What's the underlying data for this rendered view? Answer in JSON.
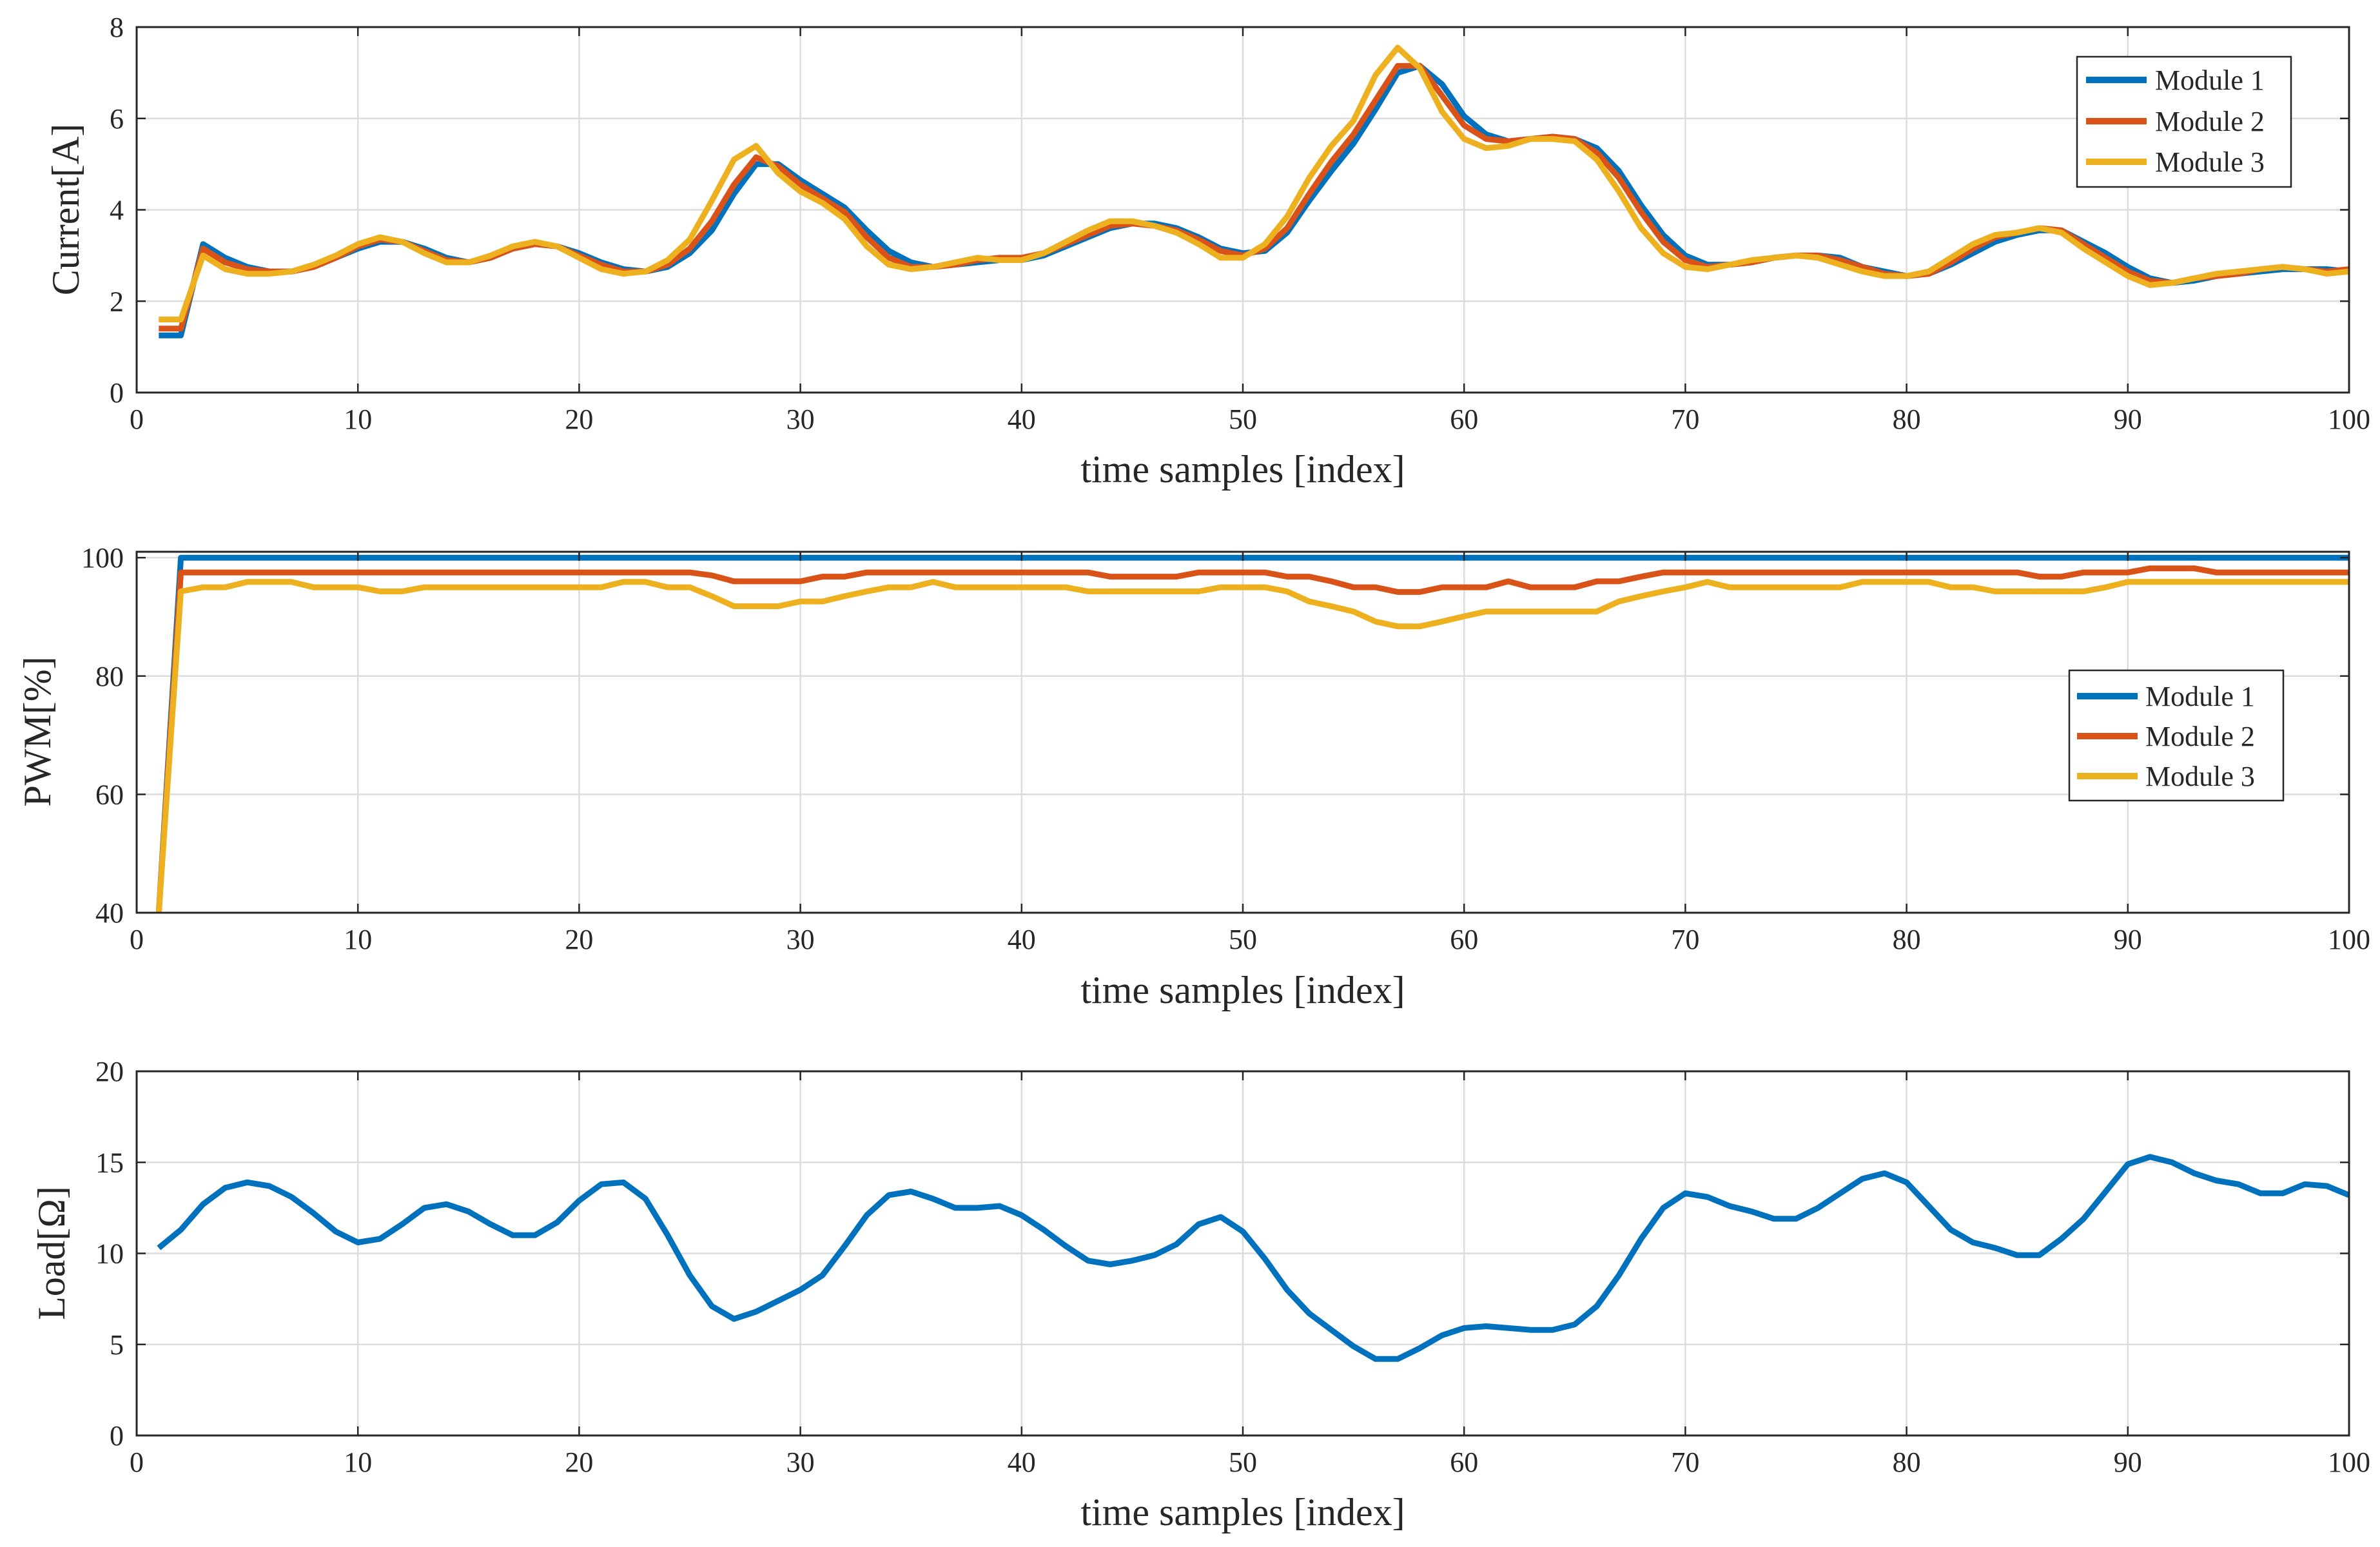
{
  "chart_data": [
    {
      "type": "line",
      "title": "",
      "xlabel": "time samples [index]",
      "ylabel": "Current[A]",
      "xlim": [
        0,
        100
      ],
      "ylim": [
        0,
        8
      ],
      "xticks": [
        0,
        10,
        20,
        30,
        40,
        50,
        60,
        70,
        80,
        90,
        100
      ],
      "yticks": [
        0,
        2,
        4,
        6,
        8
      ],
      "grid": true,
      "legend": "top-right",
      "x_start": 1,
      "series": [
        {
          "name": "Module 1",
          "color": "#0072BD",
          "values": [
            1.25,
            1.25,
            3.25,
            2.95,
            2.75,
            2.65,
            2.65,
            2.75,
            2.95,
            3.15,
            3.3,
            3.3,
            3.15,
            2.95,
            2.85,
            2.95,
            3.15,
            3.25,
            3.2,
            3.05,
            2.85,
            2.7,
            2.65,
            2.75,
            3.05,
            3.55,
            4.35,
            5.0,
            5.0,
            4.65,
            4.35,
            4.05,
            3.55,
            3.1,
            2.85,
            2.75,
            2.8,
            2.85,
            2.9,
            2.9,
            3.0,
            3.2,
            3.4,
            3.6,
            3.7,
            3.7,
            3.6,
            3.4,
            3.15,
            3.05,
            3.1,
            3.5,
            4.2,
            4.85,
            5.45,
            6.2,
            7.0,
            7.15,
            6.75,
            6.05,
            5.65,
            5.5,
            5.55,
            5.6,
            5.55,
            5.35,
            4.85,
            4.1,
            3.45,
            3.0,
            2.8,
            2.8,
            2.85,
            2.95,
            3.0,
            3.0,
            2.95,
            2.75,
            2.65,
            2.55,
            2.6,
            2.8,
            3.05,
            3.3,
            3.45,
            3.55,
            3.55,
            3.3,
            3.05,
            2.75,
            2.5,
            2.4,
            2.45,
            2.55,
            2.6,
            2.65,
            2.7,
            2.7,
            2.7,
            2.65
          ]
        },
        {
          "name": "Module 2",
          "color": "#D95319",
          "values": [
            1.4,
            1.4,
            3.15,
            2.85,
            2.7,
            2.65,
            2.65,
            2.75,
            2.95,
            3.2,
            3.35,
            3.3,
            3.1,
            2.9,
            2.85,
            2.95,
            3.15,
            3.25,
            3.2,
            3.0,
            2.8,
            2.65,
            2.65,
            2.8,
            3.15,
            3.75,
            4.55,
            5.15,
            4.95,
            4.55,
            4.25,
            3.95,
            3.4,
            2.95,
            2.75,
            2.75,
            2.8,
            2.9,
            2.95,
            2.95,
            3.05,
            3.25,
            3.45,
            3.65,
            3.7,
            3.65,
            3.55,
            3.35,
            3.1,
            3.0,
            3.15,
            3.6,
            4.35,
            5.05,
            5.65,
            6.4,
            7.15,
            7.15,
            6.5,
            5.85,
            5.55,
            5.5,
            5.55,
            5.6,
            5.55,
            5.25,
            4.7,
            3.95,
            3.3,
            2.9,
            2.75,
            2.8,
            2.85,
            2.95,
            3.0,
            3.0,
            2.9,
            2.75,
            2.6,
            2.55,
            2.6,
            2.85,
            3.15,
            3.4,
            3.5,
            3.6,
            3.55,
            3.25,
            2.95,
            2.65,
            2.45,
            2.4,
            2.5,
            2.55,
            2.6,
            2.7,
            2.75,
            2.7,
            2.65,
            2.7
          ]
        },
        {
          "name": "Module 3",
          "color": "#EDB120",
          "values": [
            1.6,
            1.6,
            3.0,
            2.7,
            2.6,
            2.6,
            2.65,
            2.8,
            3.0,
            3.25,
            3.4,
            3.3,
            3.05,
            2.85,
            2.85,
            3.0,
            3.2,
            3.3,
            3.2,
            2.95,
            2.7,
            2.6,
            2.65,
            2.9,
            3.35,
            4.2,
            5.1,
            5.4,
            4.8,
            4.4,
            4.15,
            3.8,
            3.2,
            2.8,
            2.7,
            2.75,
            2.85,
            2.95,
            2.9,
            2.9,
            3.05,
            3.3,
            3.55,
            3.75,
            3.75,
            3.65,
            3.5,
            3.25,
            2.95,
            2.95,
            3.25,
            3.85,
            4.7,
            5.4,
            5.95,
            6.95,
            7.55,
            7.1,
            6.15,
            5.55,
            5.35,
            5.4,
            5.55,
            5.55,
            5.5,
            5.1,
            4.4,
            3.6,
            3.05,
            2.75,
            2.7,
            2.8,
            2.9,
            2.95,
            3.0,
            2.95,
            2.8,
            2.65,
            2.55,
            2.55,
            2.65,
            2.95,
            3.25,
            3.45,
            3.5,
            3.6,
            3.5,
            3.15,
            2.85,
            2.55,
            2.35,
            2.4,
            2.5,
            2.6,
            2.65,
            2.7,
            2.75,
            2.7,
            2.6,
            2.65
          ]
        }
      ]
    },
    {
      "type": "line",
      "title": "",
      "xlabel": "time samples [index]",
      "ylabel": "PWM[%]",
      "xlim": [
        0,
        100
      ],
      "ylim": [
        40,
        101
      ],
      "xticks": [
        0,
        10,
        20,
        30,
        40,
        50,
        60,
        70,
        80,
        90,
        100
      ],
      "yticks": [
        40,
        60,
        80,
        100
      ],
      "grid": true,
      "legend": "center-right",
      "x_start": 1,
      "series": [
        {
          "name": "Module 1",
          "color": "#0072BD",
          "values": [
            40,
            100,
            100,
            100,
            100,
            100,
            100,
            100,
            100,
            100,
            100,
            100,
            100,
            100,
            100,
            100,
            100,
            100,
            100,
            100,
            100,
            100,
            100,
            100,
            100,
            100,
            100,
            100,
            100,
            100,
            100,
            100,
            100,
            100,
            100,
            100,
            100,
            100,
            100,
            100,
            100,
            100,
            100,
            100,
            100,
            100,
            100,
            100,
            100,
            100,
            100,
            100,
            100,
            100,
            100,
            100,
            100,
            100,
            100,
            100,
            100,
            100,
            100,
            100,
            100,
            100,
            100,
            100,
            100,
            100,
            100,
            100,
            100,
            100,
            100,
            100,
            100,
            100,
            100,
            100,
            100,
            100,
            100,
            100,
            100,
            100,
            100,
            100,
            100,
            100,
            100,
            100,
            100,
            100,
            100,
            100,
            100,
            100,
            100,
            100
          ]
        },
        {
          "name": "Module 2",
          "color": "#D95319",
          "values": [
            40,
            97.5,
            97.5,
            97.5,
            97.5,
            97.5,
            97.5,
            97.5,
            97.5,
            97.5,
            97.5,
            97.5,
            97.5,
            97.5,
            97.5,
            97.5,
            97.5,
            97.5,
            97.5,
            97.5,
            97.5,
            97.5,
            97.5,
            97.5,
            97.5,
            97,
            96,
            96,
            96,
            96,
            96.8,
            96.8,
            97.5,
            97.5,
            97.5,
            97.5,
            97.5,
            97.5,
            97.5,
            97.5,
            97.5,
            97.5,
            97.5,
            96.8,
            96.8,
            96.8,
            96.8,
            97.5,
            97.5,
            97.5,
            97.5,
            96.8,
            96.8,
            96,
            95,
            95,
            94.2,
            94.2,
            95,
            95,
            95,
            96,
            95,
            95,
            95,
            96,
            96,
            96.8,
            97.5,
            97.5,
            97.5,
            97.5,
            97.5,
            97.5,
            97.5,
            97.5,
            97.5,
            97.5,
            97.5,
            97.5,
            97.5,
            97.5,
            97.5,
            97.5,
            97.5,
            96.8,
            96.8,
            97.5,
            97.5,
            97.5,
            98.2,
            98.2,
            98.2,
            97.5,
            97.5,
            97.5,
            97.5,
            97.5,
            97.5,
            97.5
          ]
        },
        {
          "name": "Module 3",
          "color": "#EDB120",
          "values": [
            40,
            94.3,
            95,
            95,
            95.9,
            95.9,
            95.9,
            95,
            95,
            95,
            94.3,
            94.3,
            95,
            95,
            95,
            95,
            95,
            95,
            95,
            95,
            95,
            95.9,
            95.9,
            95,
            95,
            93.5,
            91.8,
            91.8,
            91.8,
            92.6,
            92.6,
            93.5,
            94.3,
            95,
            95,
            95.9,
            95,
            95,
            95,
            95,
            95,
            95,
            94.3,
            94.3,
            94.3,
            94.3,
            94.3,
            94.3,
            95,
            95,
            95,
            94.3,
            92.6,
            91.8,
            90.9,
            89.2,
            88.4,
            88.4,
            89.2,
            90.1,
            90.9,
            90.9,
            90.9,
            90.9,
            90.9,
            90.9,
            92.6,
            93.5,
            94.3,
            95,
            95.9,
            95,
            95,
            95,
            95,
            95,
            95,
            95.9,
            95.9,
            95.9,
            95.9,
            95,
            95,
            94.3,
            94.3,
            94.3,
            94.3,
            94.3,
            95,
            95.9,
            95.9,
            95.9,
            95.9,
            95.9,
            95.9,
            95.9,
            95.9,
            95.9,
            95.9,
            95.9
          ]
        }
      ]
    },
    {
      "type": "line",
      "title": "",
      "xlabel": "time samples [index]",
      "ylabel": "Load[Ω]",
      "xlim": [
        0,
        100
      ],
      "ylim": [
        0,
        20
      ],
      "xticks": [
        0,
        10,
        20,
        30,
        40,
        50,
        60,
        70,
        80,
        90,
        100
      ],
      "yticks": [
        0,
        5,
        10,
        15,
        20
      ],
      "grid": true,
      "legend": "none",
      "x_start": 1,
      "series": [
        {
          "name": "Load",
          "color": "#0072BD",
          "values": [
            10.3,
            11.3,
            12.7,
            13.6,
            13.9,
            13.7,
            13.1,
            12.2,
            11.2,
            10.6,
            10.8,
            11.6,
            12.5,
            12.7,
            12.3,
            11.6,
            11.0,
            11.0,
            11.7,
            12.9,
            13.8,
            13.9,
            13.0,
            11.0,
            8.8,
            7.1,
            6.4,
            6.8,
            7.4,
            8.0,
            8.8,
            10.4,
            12.1,
            13.2,
            13.4,
            13.0,
            12.5,
            12.5,
            12.6,
            12.1,
            11.3,
            10.4,
            9.6,
            9.4,
            9.6,
            9.9,
            10.5,
            11.6,
            12.0,
            11.2,
            9.7,
            8.0,
            6.7,
            5.8,
            4.9,
            4.2,
            4.2,
            4.8,
            5.5,
            5.9,
            6.0,
            5.9,
            5.8,
            5.8,
            6.1,
            7.1,
            8.8,
            10.8,
            12.5,
            13.3,
            13.1,
            12.6,
            12.3,
            11.9,
            11.9,
            12.5,
            13.3,
            14.1,
            14.4,
            13.9,
            12.6,
            11.3,
            10.6,
            10.3,
            9.9,
            9.9,
            10.8,
            11.9,
            13.4,
            14.9,
            15.3,
            15.0,
            14.4,
            14.0,
            13.8,
            13.3,
            13.3,
            13.8,
            13.7,
            13.2
          ]
        }
      ]
    }
  ]
}
